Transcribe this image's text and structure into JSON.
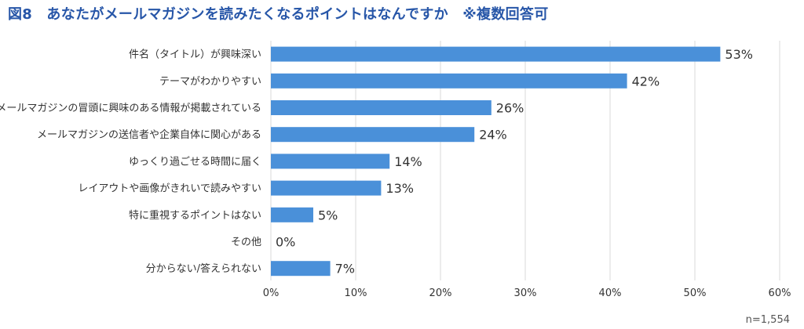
{
  "title": "図8　あなたがメールマガジンを読みたくなるポイントはなんですか　※複数回答可",
  "note": "n=1,554",
  "colors": {
    "bar": "#4a90d9",
    "grid": "#d9d9d9",
    "title": "#2756a8"
  },
  "chart_data": {
    "type": "bar",
    "orientation": "horizontal",
    "categories": [
      "件名（タイトル）が興味深い",
      "テーマがわかりやすい",
      "メールマガジンの冒頭に興味のある情報が掲載されている",
      "メールマガジンの送信者や企業自体に関心がある",
      "ゆっくり過ごせる時間に届く",
      "レイアウトや画像がきれいで読みやすい",
      "特に重視するポイントはない",
      "その他",
      "分からない/答えられない"
    ],
    "values": [
      53,
      42,
      26,
      24,
      14,
      13,
      5,
      0,
      7
    ],
    "value_labels": [
      "53%",
      "42%",
      "26%",
      "24%",
      "14%",
      "13%",
      "5%",
      "0%",
      "7%"
    ],
    "xlim": [
      0,
      60
    ],
    "xticks": [
      0,
      10,
      20,
      30,
      40,
      50,
      60
    ],
    "xtick_labels": [
      "0%",
      "10%",
      "20%",
      "30%",
      "40%",
      "50%",
      "60%"
    ],
    "grid": true,
    "legend": false
  }
}
